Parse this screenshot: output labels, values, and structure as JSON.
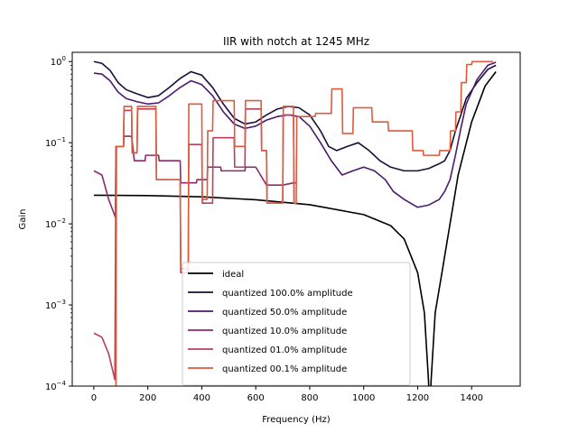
{
  "chart_data": {
    "type": "line",
    "title": "IIR with notch at 1245 MHz",
    "xlabel": "Frequency (Hz)",
    "ylabel": "Gain",
    "xlim": [
      -80,
      1580
    ],
    "ylim": [
      0.0001,
      1.3
    ],
    "yscale": "log",
    "x_ticks": [
      0,
      200,
      400,
      600,
      800,
      1000,
      1200,
      1400
    ],
    "y_ticks": [
      {
        "value": 0.0001,
        "base": "10",
        "exp": "−4"
      },
      {
        "value": 0.001,
        "base": "10",
        "exp": "−3"
      },
      {
        "value": 0.01,
        "base": "10",
        "exp": "−2"
      },
      {
        "value": 0.1,
        "base": "10",
        "exp": "−1"
      },
      {
        "value": 1,
        "base": "10",
        "exp": "0"
      }
    ],
    "legend": {
      "placement": "lower-center"
    },
    "series": [
      {
        "name": "ideal",
        "color": "#000000",
        "points": [
          [
            0,
            0.0225
          ],
          [
            200,
            0.0223
          ],
          [
            400,
            0.0215
          ],
          [
            600,
            0.0198
          ],
          [
            800,
            0.0172
          ],
          [
            1000,
            0.013
          ],
          [
            1100,
            0.0095
          ],
          [
            1150,
            0.0065
          ],
          [
            1200,
            0.0025
          ],
          [
            1225,
            0.0008
          ],
          [
            1240,
            0.00012
          ],
          [
            1245,
            5e-05
          ],
          [
            1250,
            0.00012
          ],
          [
            1265,
            0.0008
          ],
          [
            1290,
            0.0025
          ],
          [
            1320,
            0.01
          ],
          [
            1350,
            0.04
          ],
          [
            1400,
            0.18
          ],
          [
            1450,
            0.5
          ],
          [
            1490,
            0.75
          ]
        ]
      },
      {
        "name": "quantized 100.0% amplitude",
        "color": "#1a0d3a",
        "points": [
          [
            0,
            1.0
          ],
          [
            30,
            0.95
          ],
          [
            60,
            0.78
          ],
          [
            90,
            0.55
          ],
          [
            120,
            0.45
          ],
          [
            160,
            0.4
          ],
          [
            200,
            0.36
          ],
          [
            240,
            0.38
          ],
          [
            280,
            0.48
          ],
          [
            320,
            0.62
          ],
          [
            360,
            0.75
          ],
          [
            400,
            0.68
          ],
          [
            440,
            0.48
          ],
          [
            480,
            0.3
          ],
          [
            520,
            0.2
          ],
          [
            560,
            0.17
          ],
          [
            600,
            0.18
          ],
          [
            640,
            0.22
          ],
          [
            680,
            0.26
          ],
          [
            720,
            0.28
          ],
          [
            760,
            0.27
          ],
          [
            800,
            0.22
          ],
          [
            840,
            0.14
          ],
          [
            870,
            0.09
          ],
          [
            900,
            0.08
          ],
          [
            940,
            0.09
          ],
          [
            980,
            0.1
          ],
          [
            1020,
            0.08
          ],
          [
            1060,
            0.06
          ],
          [
            1100,
            0.05
          ],
          [
            1150,
            0.045
          ],
          [
            1200,
            0.045
          ],
          [
            1240,
            0.048
          ],
          [
            1280,
            0.055
          ],
          [
            1300,
            0.06
          ],
          [
            1320,
            0.08
          ],
          [
            1340,
            0.14
          ],
          [
            1360,
            0.22
          ],
          [
            1380,
            0.35
          ],
          [
            1420,
            0.55
          ],
          [
            1460,
            0.8
          ],
          [
            1490,
            0.9
          ]
        ]
      },
      {
        "name": "quantized 50.0% amplitude",
        "color": "#4b1a6b",
        "points": [
          [
            0,
            0.72
          ],
          [
            30,
            0.7
          ],
          [
            60,
            0.58
          ],
          [
            90,
            0.42
          ],
          [
            120,
            0.35
          ],
          [
            160,
            0.32
          ],
          [
            200,
            0.3
          ],
          [
            240,
            0.31
          ],
          [
            280,
            0.38
          ],
          [
            320,
            0.48
          ],
          [
            360,
            0.58
          ],
          [
            400,
            0.52
          ],
          [
            440,
            0.38
          ],
          [
            480,
            0.24
          ],
          [
            520,
            0.17
          ],
          [
            560,
            0.15
          ],
          [
            600,
            0.16
          ],
          [
            640,
            0.19
          ],
          [
            680,
            0.21
          ],
          [
            720,
            0.22
          ],
          [
            760,
            0.21
          ],
          [
            800,
            0.16
          ],
          [
            840,
            0.1
          ],
          [
            880,
            0.06
          ],
          [
            920,
            0.04
          ],
          [
            960,
            0.045
          ],
          [
            1000,
            0.05
          ],
          [
            1040,
            0.045
          ],
          [
            1080,
            0.035
          ],
          [
            1110,
            0.025
          ],
          [
            1150,
            0.02
          ],
          [
            1200,
            0.016
          ],
          [
            1240,
            0.017
          ],
          [
            1280,
            0.02
          ],
          [
            1300,
            0.025
          ],
          [
            1320,
            0.035
          ],
          [
            1340,
            0.07
          ],
          [
            1360,
            0.15
          ],
          [
            1380,
            0.3
          ],
          [
            1420,
            0.6
          ],
          [
            1460,
            0.9
          ],
          [
            1490,
            0.98
          ]
        ]
      },
      {
        "name": "quantized 10.0% amplitude",
        "color": "#8c2a6e",
        "points": [
          [
            0,
            0.045
          ],
          [
            30,
            0.04
          ],
          [
            55,
            0.02
          ],
          [
            80,
            0.012
          ],
          [
            82,
            0.09
          ],
          [
            110,
            0.09
          ],
          [
            112,
            0.12
          ],
          [
            140,
            0.12
          ],
          [
            150,
            0.06
          ],
          [
            190,
            0.06
          ],
          [
            192,
            0.07
          ],
          [
            240,
            0.07
          ],
          [
            242,
            0.06
          ],
          [
            320,
            0.06
          ],
          [
            322,
            0.032
          ],
          [
            380,
            0.032
          ],
          [
            382,
            0.035
          ],
          [
            420,
            0.035
          ],
          [
            422,
            0.05
          ],
          [
            470,
            0.05
          ],
          [
            472,
            0.045
          ],
          [
            560,
            0.045
          ],
          [
            562,
            0.05
          ],
          [
            600,
            0.05
          ],
          [
            640,
            0.03
          ],
          [
            700,
            0.03
          ],
          [
            740,
            0.032
          ],
          [
            748,
            0.032
          ]
        ]
      },
      {
        "name": "quantized 01.0% amplitude",
        "color": "#b83f5e",
        "points": [
          [
            0,
            0.00045
          ],
          [
            30,
            0.0004
          ],
          [
            55,
            0.00025
          ],
          [
            78,
            0.00012
          ],
          [
            82,
            0.09
          ],
          [
            110,
            0.09
          ],
          [
            112,
            0.25
          ],
          [
            140,
            0.25
          ],
          [
            142,
            0.075
          ],
          [
            160,
            0.075
          ],
          [
            162,
            0.26
          ],
          [
            230,
            0.26
          ],
          [
            232,
            0.035
          ],
          [
            320,
            0.035
          ],
          [
            322,
            0.0025
          ],
          [
            350,
            0.0025
          ],
          [
            352,
            0.095
          ],
          [
            400,
            0.095
          ],
          [
            402,
            0.018
          ],
          [
            440,
            0.018
          ],
          [
            442,
            0.115
          ],
          [
            520,
            0.115
          ],
          [
            522,
            0.05
          ],
          [
            560,
            0.05
          ],
          [
            562,
            0.26
          ],
          [
            620,
            0.26
          ],
          [
            622,
            0.08
          ],
          [
            640,
            0.08
          ],
          [
            642,
            0.018
          ],
          [
            700,
            0.018
          ],
          [
            702,
            0.22
          ],
          [
            740,
            0.22
          ],
          [
            742,
            0.018
          ]
        ]
      },
      {
        "name": "quantized 00.1% amplitude",
        "color": "#e05a3a",
        "points": [
          [
            82,
            0.0001
          ],
          [
            84,
            0.09
          ],
          [
            110,
            0.09
          ],
          [
            112,
            0.28
          ],
          [
            140,
            0.28
          ],
          [
            142,
            0.075
          ],
          [
            160,
            0.075
          ],
          [
            162,
            0.28
          ],
          [
            230,
            0.28
          ],
          [
            232,
            0.035
          ],
          [
            320,
            0.035
          ],
          [
            322,
            0.0028
          ],
          [
            350,
            0.0028
          ],
          [
            352,
            0.3
          ],
          [
            400,
            0.3
          ],
          [
            402,
            0.02
          ],
          [
            420,
            0.02
          ],
          [
            422,
            0.14
          ],
          [
            440,
            0.14
          ],
          [
            442,
            0.33
          ],
          [
            520,
            0.33
          ],
          [
            522,
            0.09
          ],
          [
            560,
            0.09
          ],
          [
            562,
            0.33
          ],
          [
            620,
            0.33
          ],
          [
            622,
            0.08
          ],
          [
            640,
            0.08
          ],
          [
            642,
            0.018
          ],
          [
            700,
            0.018
          ],
          [
            702,
            0.28
          ],
          [
            740,
            0.28
          ],
          [
            742,
            0.018
          ],
          [
            750,
            0.018
          ],
          [
            752,
            0.21
          ],
          [
            820,
            0.21
          ],
          [
            822,
            0.23
          ],
          [
            880,
            0.23
          ],
          [
            882,
            0.46
          ],
          [
            920,
            0.46
          ],
          [
            922,
            0.13
          ],
          [
            960,
            0.13
          ],
          [
            962,
            0.27
          ],
          [
            1030,
            0.27
          ],
          [
            1032,
            0.18
          ],
          [
            1090,
            0.18
          ],
          [
            1092,
            0.14
          ],
          [
            1180,
            0.14
          ],
          [
            1182,
            0.08
          ],
          [
            1220,
            0.08
          ],
          [
            1222,
            0.07
          ],
          [
            1280,
            0.07
          ],
          [
            1282,
            0.08
          ],
          [
            1320,
            0.08
          ],
          [
            1322,
            0.14
          ],
          [
            1340,
            0.14
          ],
          [
            1342,
            0.24
          ],
          [
            1360,
            0.24
          ],
          [
            1362,
            0.55
          ],
          [
            1380,
            0.55
          ],
          [
            1382,
            0.92
          ],
          [
            1400,
            0.92
          ],
          [
            1402,
            1.0
          ],
          [
            1480,
            1.0
          ]
        ]
      }
    ]
  }
}
